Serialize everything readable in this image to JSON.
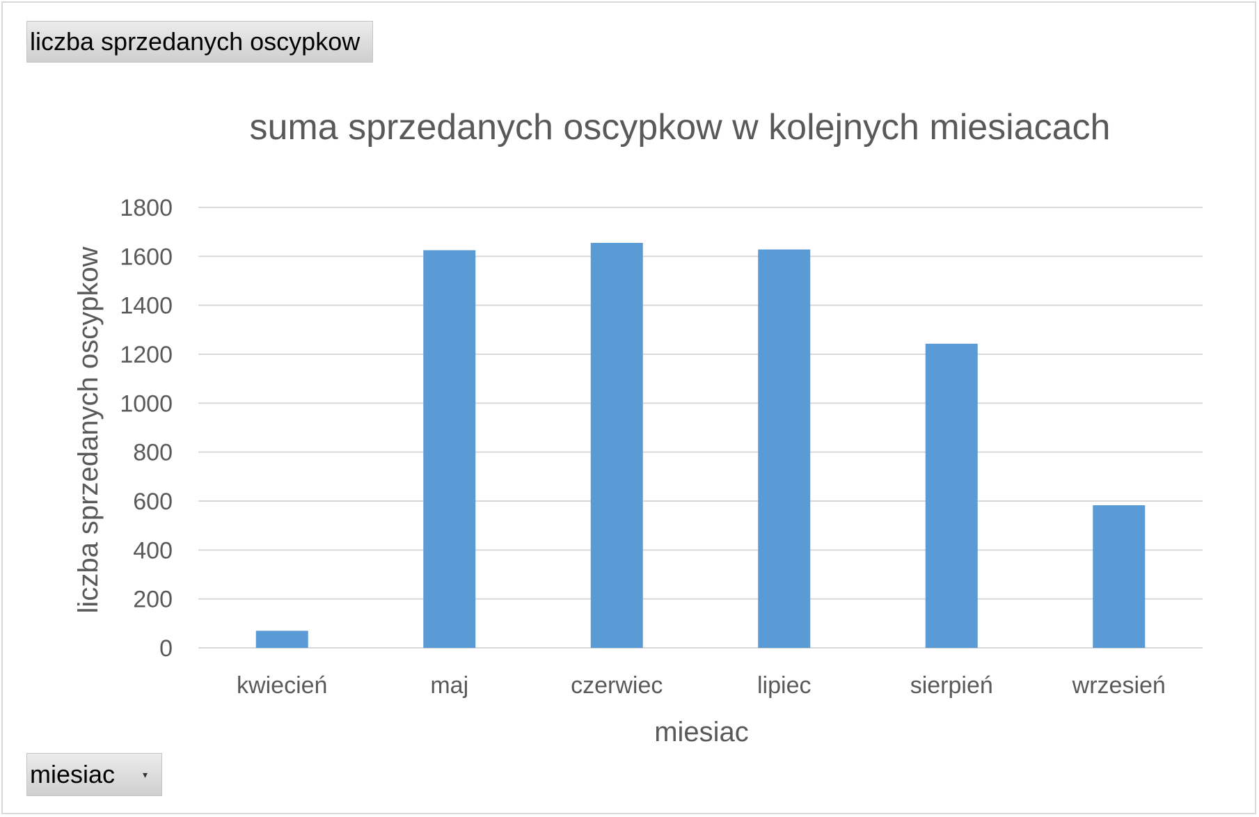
{
  "value_field_button": {
    "label": "liczba sprzedanych oscypkow"
  },
  "axis_field_button": {
    "label": "miesiac",
    "icon": "dropdown-arrow-icon"
  },
  "chart_data": {
    "type": "bar",
    "title": "suma sprzedanych oscypkow w kolejnych miesiacach",
    "xlabel": "miesiac",
    "ylabel": "liczba sprzedanych oscypkow",
    "categories": [
      "kwiecień",
      "maj",
      "czerwiec",
      "lipiec",
      "sierpień",
      "wrzesień"
    ],
    "values": [
      70,
      1625,
      1655,
      1628,
      1243,
      583
    ],
    "ylim": [
      0,
      1800
    ],
    "yticks": [
      "0",
      "200",
      "400",
      "600",
      "800",
      "1000",
      "1200",
      "1400",
      "1600",
      "1800"
    ],
    "grid": true,
    "legend": "none",
    "bar_color": "#5b9bd5"
  }
}
